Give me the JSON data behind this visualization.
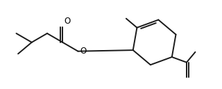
{
  "background": "#ffffff",
  "line_color": "#1a1a1a",
  "line_width": 1.4,
  "text_color": "#000000",
  "font_size": 8.5,
  "figsize": [
    3.2,
    1.28
  ],
  "dpi": 100,
  "xlim": [
    0,
    10
  ],
  "ylim": [
    0,
    4
  ]
}
